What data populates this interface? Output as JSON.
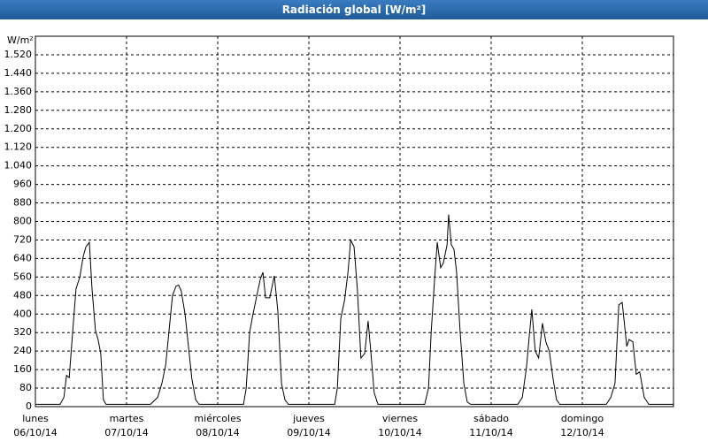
{
  "chart_data": {
    "type": "line",
    "title": "Radiación global [W/m²]",
    "y_label": "W/m²",
    "color": "#000000",
    "grid": true,
    "xlim": [
      0,
      168
    ],
    "ylim": [
      0,
      1600
    ],
    "xticks": [
      {
        "value": 0,
        "label": "lunes",
        "sublabel": "06/10/14"
      },
      {
        "value": 24,
        "label": "martes",
        "sublabel": "07/10/14"
      },
      {
        "value": 48,
        "label": "miércoles",
        "sublabel": "08/10/14"
      },
      {
        "value": 72,
        "label": "jueves",
        "sublabel": "09/10/14"
      },
      {
        "value": 96,
        "label": "viernes",
        "sublabel": "10/10/14"
      },
      {
        "value": 120,
        "label": "sábado",
        "sublabel": "11/10/14"
      },
      {
        "value": 144,
        "label": "domingo",
        "sublabel": "12/10/14"
      }
    ],
    "yticks": [
      0,
      80,
      160,
      240,
      320,
      400,
      480,
      560,
      640,
      720,
      800,
      880,
      960,
      {
        "value": 1040,
        "label": "1.040"
      },
      {
        "value": 1120,
        "label": "1.120"
      },
      {
        "value": 1200,
        "label": "1.200"
      },
      {
        "value": 1280,
        "label": "1.280"
      },
      {
        "value": 1360,
        "label": "1.360"
      },
      {
        "value": 1440,
        "label": "1.440"
      },
      {
        "value": 1520,
        "label": "1.520"
      }
    ],
    "x": [
      0,
      6.5,
      7.5,
      8.2,
      8.9,
      9.8,
      10.7,
      11.7,
      12.6,
      13.3,
      14.2,
      14.9,
      15.8,
      16.5,
      17.2,
      17.9,
      18.6,
      30.3,
      32.2,
      33.3,
      34.3,
      35.2,
      36.1,
      37.0,
      37.7,
      38.4,
      39.4,
      40.3,
      41.2,
      42.2,
      43.1,
      54.8,
      55.5,
      56.4,
      57.3,
      58.3,
      59.2,
      59.9,
      60.6,
      61.7,
      62.9,
      63.8,
      64.8,
      65.7,
      66.6,
      78.8,
      79.5,
      80.4,
      81.4,
      82.3,
      83.0,
      83.9,
      84.8,
      85.7,
      86.7,
      87.6,
      88.3,
      89.2,
      90.2,
      102.5,
      103.5,
      104.2,
      105.1,
      105.8,
      106.7,
      107.4,
      108.4,
      108.8,
      109.5,
      110.2,
      110.9,
      111.8,
      112.8,
      113.7,
      114.6,
      127.0,
      128.2,
      129.3,
      130.0,
      130.7,
      131.6,
      132.5,
      133.5,
      134.4,
      135.3,
      136.3,
      137.2,
      138.1,
      150.3,
      151.5,
      152.6,
      153.6,
      154.5,
      155.7,
      156.3,
      157.3,
      158.2,
      159.1,
      160.3,
      161.5,
      168
    ],
    "values": [
      10,
      10,
      40,
      135,
      125,
      320,
      510,
      560,
      650,
      690,
      710,
      510,
      330,
      290,
      230,
      30,
      10,
      10,
      40,
      100,
      180,
      330,
      480,
      520,
      525,
      500,
      400,
      260,
      120,
      30,
      10,
      10,
      80,
      320,
      400,
      480,
      550,
      580,
      470,
      470,
      565,
      420,
      100,
      30,
      10,
      10,
      80,
      380,
      460,
      580,
      720,
      690,
      500,
      210,
      230,
      370,
      240,
      60,
      10,
      10,
      80,
      320,
      550,
      710,
      600,
      620,
      700,
      830,
      700,
      680,
      580,
      330,
      100,
      20,
      10,
      10,
      40,
      170,
      300,
      420,
      240,
      210,
      360,
      280,
      240,
      120,
      30,
      10,
      10,
      40,
      100,
      440,
      450,
      260,
      290,
      280,
      140,
      150,
      40,
      10,
      10
    ]
  }
}
